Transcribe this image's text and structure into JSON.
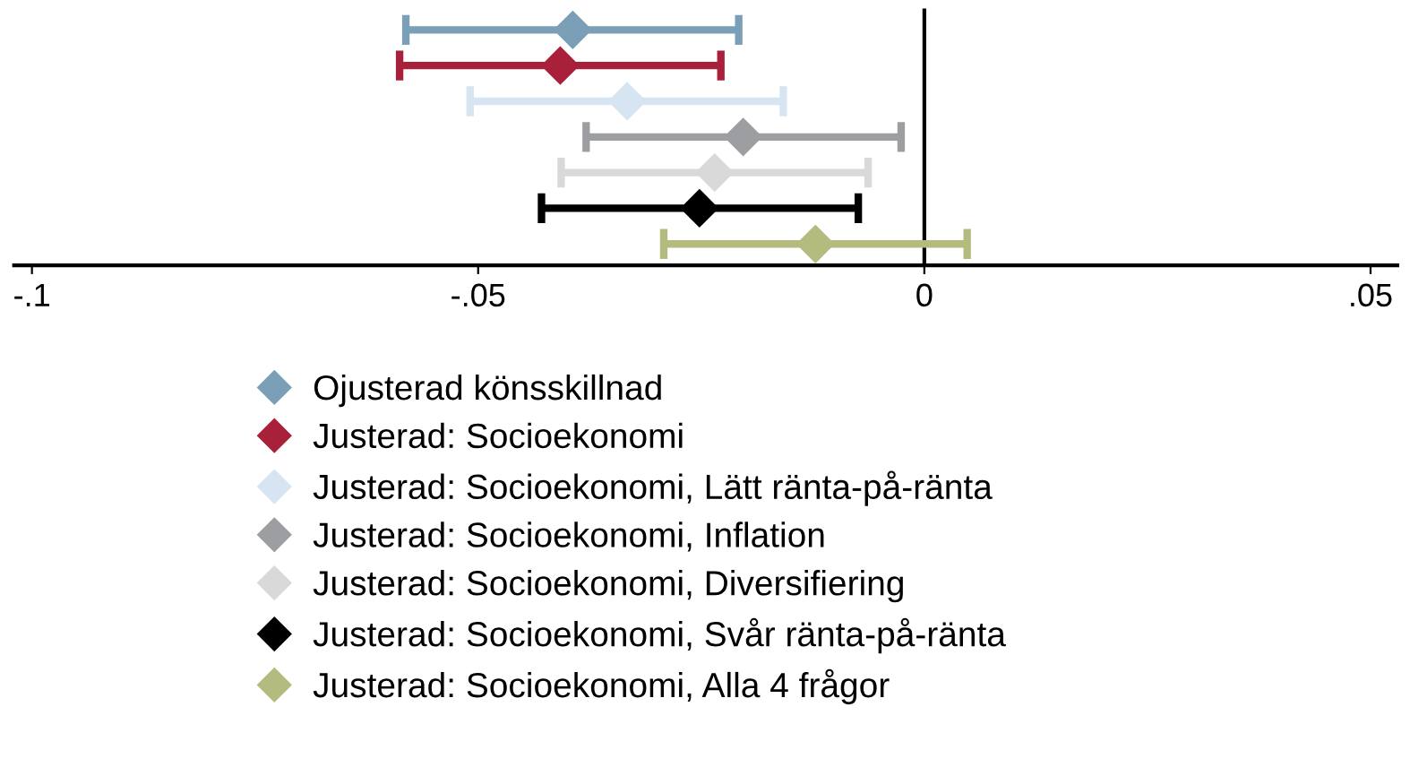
{
  "chart_data": {
    "type": "scatter",
    "orientation": "horizontal",
    "categories": [
      null,
      null,
      null,
      null,
      null,
      null,
      null
    ],
    "xlim": [
      -0.102,
      0.053
    ],
    "xticks": [
      {
        "value": -0.1,
        "label": "-.1"
      },
      {
        "value": -0.05,
        "label": "-.05"
      },
      {
        "value": 0,
        "label": "0"
      },
      {
        "value": 0.05,
        "label": ".05"
      }
    ],
    "marker": "diamond",
    "grid": false,
    "legend": "bottom",
    "tick_labels": "x",
    "ref_lines": [
      {
        "axis": "x",
        "value": 0,
        "color": "#000000"
      }
    ],
    "series": [
      {
        "name": "Ojusterad könsskillnad",
        "color": "#7b9fb6",
        "values": [
          -0.0394,
          null,
          null,
          null,
          null,
          null,
          null
        ],
        "errors": [
          [
            -0.0581,
            -0.0208
          ],
          null,
          null,
          null,
          null,
          null,
          null
        ]
      },
      {
        "name": "Justerad: Socioekonomi",
        "color": "#a8203a",
        "values": [
          null,
          -0.0408,
          null,
          null,
          null,
          null,
          null
        ],
        "errors": [
          null,
          [
            -0.0588,
            -0.0228
          ],
          null,
          null,
          null,
          null,
          null
        ]
      },
      {
        "name": "Justerad: Socioekonomi, Lätt ränta-på-ränta",
        "color": "#d6e5f1",
        "values": [
          null,
          null,
          -0.0333,
          null,
          null,
          null,
          null
        ],
        "errors": [
          null,
          null,
          [
            -0.0509,
            -0.0158
          ],
          null,
          null,
          null,
          null
        ]
      },
      {
        "name": "Justerad: Socioekonomi, Inflation",
        "color": "#9d9ea2",
        "values": [
          null,
          null,
          null,
          -0.0203,
          null,
          null,
          null
        ],
        "errors": [
          null,
          null,
          null,
          [
            -0.0379,
            -0.0026
          ],
          null,
          null,
          null
        ]
      },
      {
        "name": "Justerad: Socioekonomi, Diversifiering",
        "color": "#d9d9d9",
        "values": [
          null,
          null,
          null,
          null,
          -0.0235,
          null,
          null
        ],
        "errors": [
          null,
          null,
          null,
          null,
          [
            -0.0407,
            -0.0063
          ],
          null,
          null
        ]
      },
      {
        "name": "Justerad: Socioekonomi, Svår ränta-på-ränta",
        "color": "#000000",
        "values": [
          null,
          null,
          null,
          null,
          null,
          -0.0252,
          null
        ],
        "errors": [
          null,
          null,
          null,
          null,
          null,
          [
            -0.0429,
            -0.0074
          ],
          null
        ]
      },
      {
        "name": "Justerad: Socioekonomi, Alla 4 frågor",
        "color": "#b5bb7e",
        "values": [
          null,
          null,
          null,
          null,
          null,
          null,
          -0.0122
        ],
        "errors": [
          null,
          null,
          null,
          null,
          null,
          null,
          [
            -0.0292,
            0.0048
          ]
        ]
      }
    ]
  }
}
